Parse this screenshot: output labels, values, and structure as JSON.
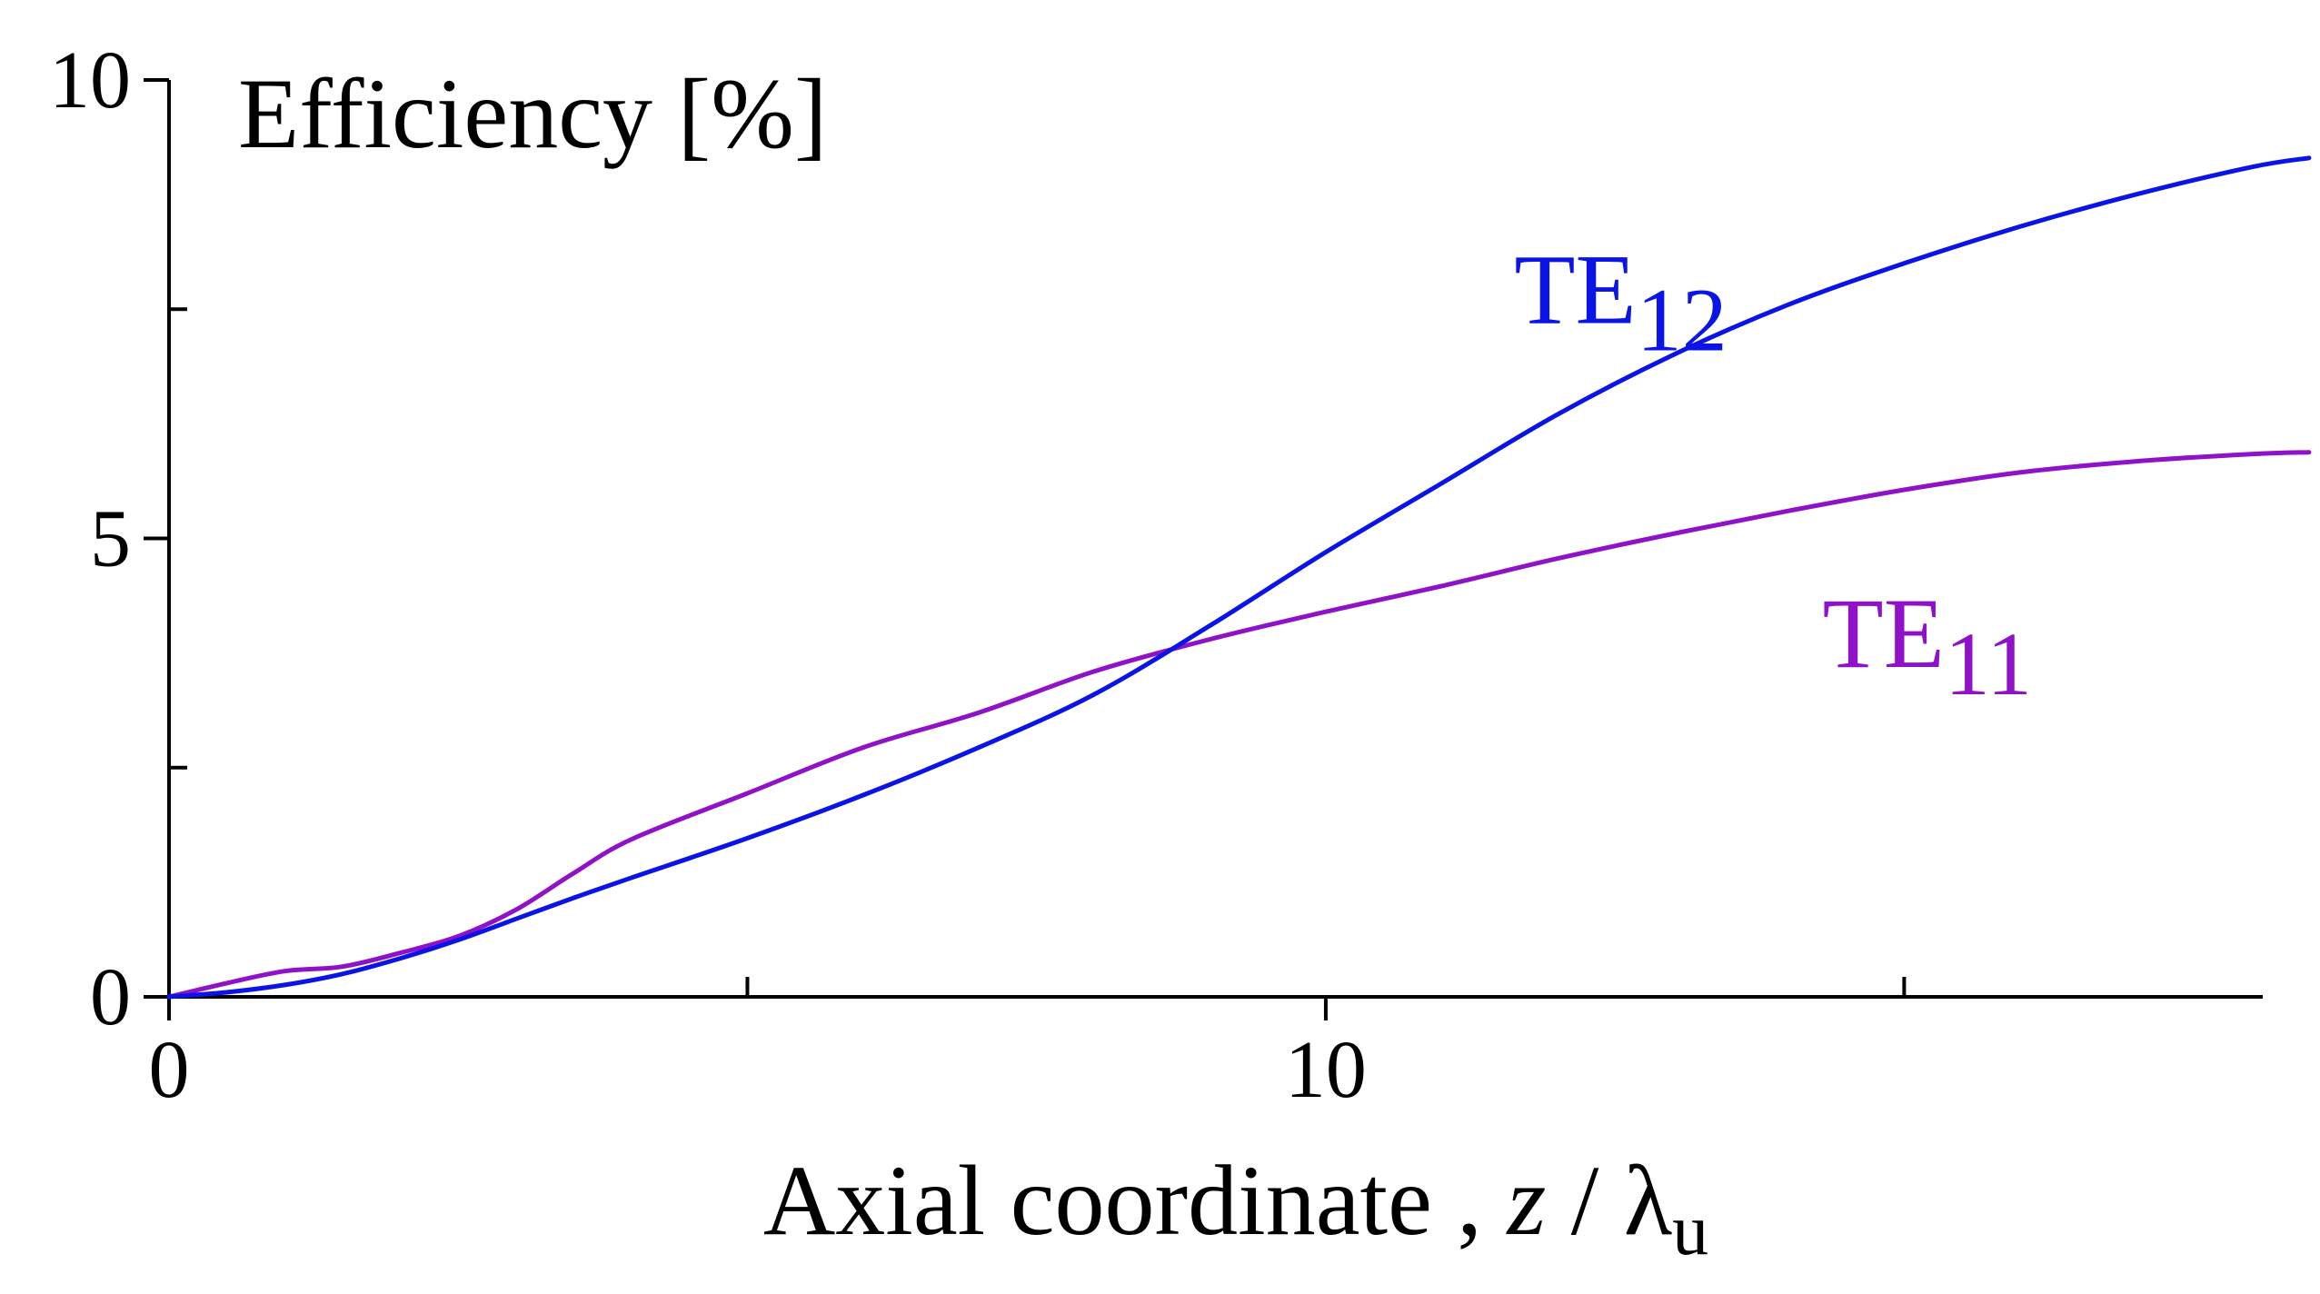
{
  "chart_data": {
    "type": "line",
    "title": "Efficiency [%]",
    "xlabel": {
      "main": "Axial coordinate , ",
      "var": "z",
      "sep": " / ",
      "lambda": "λ",
      "sub": "u"
    },
    "ylabel": "",
    "xlim": [
      0,
      18.1
    ],
    "ylim": [
      0,
      10
    ],
    "grid": false,
    "x_ticks": [
      0,
      5,
      10,
      15
    ],
    "x_tick_labels": [
      "0",
      "",
      "10",
      ""
    ],
    "y_ticks": [
      0,
      2.5,
      5,
      7.5,
      10
    ],
    "y_tick_labels": [
      "0",
      "",
      "5",
      "",
      "10"
    ],
    "series": [
      {
        "name": "TE12",
        "label_base": "TE",
        "label_sub": "12",
        "color": "#0a14e6",
        "x": [
          0,
          0.5,
          1.0,
          1.5,
          2.0,
          2.5,
          3.0,
          3.5,
          4.0,
          5.0,
          6.0,
          7.0,
          8.0,
          9.0,
          10.0,
          11.0,
          12.0,
          13.0,
          14.0,
          15.0,
          16.0,
          17.0,
          18.0,
          18.5
        ],
        "y": [
          0,
          0.05,
          0.13,
          0.25,
          0.42,
          0.62,
          0.85,
          1.08,
          1.3,
          1.73,
          2.2,
          2.72,
          3.3,
          4.05,
          4.85,
          5.6,
          6.35,
          7.0,
          7.55,
          8.0,
          8.4,
          8.75,
          9.05,
          9.15
        ]
      },
      {
        "name": "TE11",
        "label_base": "TE",
        "label_sub": "11",
        "color": "#9012c8",
        "x": [
          0,
          0.5,
          1.0,
          1.5,
          2.0,
          2.5,
          3.0,
          3.5,
          4.0,
          5.0,
          6.0,
          7.0,
          8.0,
          9.0,
          10.0,
          11.0,
          12.0,
          13.0,
          14.0,
          15.0,
          16.0,
          17.0,
          18.0,
          18.5
        ],
        "y": [
          0,
          0.15,
          0.28,
          0.33,
          0.48,
          0.66,
          0.95,
          1.35,
          1.72,
          2.22,
          2.72,
          3.1,
          3.55,
          3.9,
          4.2,
          4.48,
          4.78,
          5.05,
          5.3,
          5.53,
          5.72,
          5.84,
          5.92,
          5.94
        ]
      }
    ]
  }
}
